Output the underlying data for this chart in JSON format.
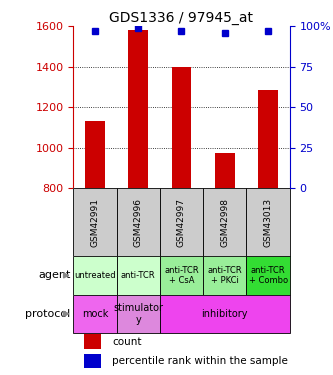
{
  "title": "GDS1336 / 97945_at",
  "samples": [
    "GSM42991",
    "GSM42996",
    "GSM42997",
    "GSM42998",
    "GSM43013"
  ],
  "counts": [
    1130,
    1580,
    1400,
    975,
    1285
  ],
  "percentile_ranks": [
    97,
    99,
    97,
    96,
    97
  ],
  "ylim_left": [
    800,
    1600
  ],
  "ylim_right": [
    0,
    100
  ],
  "yticks_left": [
    800,
    1000,
    1200,
    1400,
    1600
  ],
  "yticks_right": [
    0,
    25,
    50,
    75,
    100
  ],
  "bar_color": "#cc0000",
  "dot_color": "#0000cc",
  "agent_labels": [
    "untreated",
    "anti-TCR",
    "anti-TCR\n+ CsA",
    "anti-TCR\n+ PKCi",
    "anti-TCR\n+ Combo"
  ],
  "agent_colors": [
    "#ccffcc",
    "#ccffcc",
    "#99ee99",
    "#99ee99",
    "#33dd33"
  ],
  "protocol_groups": [
    {
      "label": "mock",
      "span": [
        0,
        1
      ],
      "color": "#ee66ee"
    },
    {
      "label": "stimulator\ny",
      "span": [
        1,
        2
      ],
      "color": "#dd88dd"
    },
    {
      "label": "inhibitory",
      "span": [
        2,
        5
      ],
      "color": "#ee44ee"
    }
  ],
  "sample_bg_color": "#cccccc",
  "left_axis_color": "#cc0000",
  "right_axis_color": "#0000cc",
  "legend_count_color": "#cc0000",
  "legend_pct_color": "#0000cc",
  "title_fontsize": 10,
  "tick_fontsize": 8,
  "label_fontsize": 8,
  "sample_fontsize": 6.5,
  "agent_fontsize": 6,
  "proto_fontsize": 7
}
